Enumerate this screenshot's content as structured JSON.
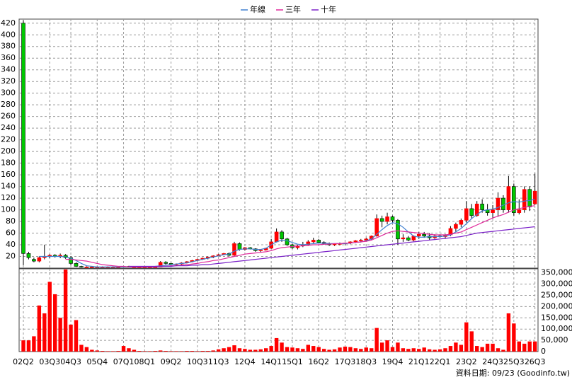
{
  "chart_data": {
    "type": "candlestick",
    "categories": [
      "02Q2",
      null,
      null,
      null,
      null,
      "03Q3",
      null,
      null,
      null,
      "04Q3",
      null,
      null,
      null,
      null,
      "05Q4",
      null,
      null,
      null,
      null,
      "07Q1",
      null,
      null,
      null,
      "08Q1",
      null,
      null,
      null,
      null,
      "09Q2",
      null,
      null,
      null,
      null,
      "10Q3",
      null,
      null,
      null,
      "11Q3",
      null,
      null,
      null,
      null,
      "12Q4",
      null,
      null,
      null,
      null,
      "14Q1",
      null,
      null,
      null,
      "15Q1",
      null,
      null,
      null,
      null,
      "16Q2",
      null,
      null,
      null,
      null,
      "17Q3",
      null,
      null,
      null,
      "18Q3",
      null,
      null,
      null,
      null,
      "19Q4",
      null,
      null,
      null,
      null,
      "21Q1",
      null,
      null,
      null,
      "22Q1",
      null,
      null,
      null,
      null,
      "23Q2",
      null,
      null,
      null,
      null,
      "24Q3",
      null,
      null,
      null,
      "25Q3",
      null,
      null,
      null,
      "26Q3"
    ],
    "open": [
      420,
      25,
      15,
      12,
      18,
      20,
      22,
      20,
      22,
      18,
      8,
      3,
      2,
      2,
      2,
      2,
      2,
      2,
      2,
      2,
      3,
      2,
      2,
      2,
      2,
      2,
      2,
      10,
      8,
      6,
      7,
      9,
      11,
      13,
      15,
      17,
      19,
      21,
      23,
      25,
      22,
      42,
      32,
      35,
      33,
      30,
      31,
      34,
      45,
      62,
      50,
      40,
      35,
      38,
      40,
      45,
      48,
      44,
      42,
      40,
      41,
      42,
      43,
      45,
      47,
      48,
      50,
      55,
      85,
      80,
      88,
      82,
      50,
      52,
      48,
      55,
      58,
      55,
      52,
      55,
      54,
      57,
      68,
      75,
      82,
      102,
      90,
      110,
      100,
      95,
      100,
      120,
      100,
      140,
      95,
      100,
      135,
      110
    ],
    "high": [
      425,
      28,
      18,
      20,
      40,
      24,
      24,
      25,
      24,
      20,
      10,
      4,
      3,
      3,
      3,
      3,
      3,
      3,
      3,
      3,
      4,
      3,
      3,
      3,
      3,
      3,
      12,
      12,
      9,
      8,
      10,
      12,
      14,
      16,
      18,
      20,
      22,
      24,
      26,
      27,
      45,
      44,
      36,
      36,
      34,
      32,
      35,
      50,
      68,
      65,
      52,
      42,
      40,
      45,
      48,
      52,
      50,
      46,
      44,
      42,
      44,
      44,
      46,
      48,
      50,
      52,
      56,
      92,
      90,
      95,
      90,
      84,
      58,
      55,
      56,
      62,
      62,
      60,
      58,
      58,
      58,
      72,
      78,
      85,
      115,
      110,
      115,
      118,
      110,
      108,
      130,
      125,
      158,
      145,
      118,
      140,
      140,
      162
    ],
    "low": [
      5,
      15,
      10,
      10,
      15,
      17,
      18,
      17,
      16,
      5,
      2,
      1,
      1,
      1,
      1,
      1,
      1,
      1,
      1,
      1,
      2,
      1,
      1,
      1,
      1,
      1,
      2,
      6,
      5,
      4,
      6,
      8,
      10,
      12,
      14,
      15,
      17,
      20,
      22,
      20,
      21,
      30,
      30,
      32,
      28,
      27,
      30,
      33,
      44,
      45,
      38,
      33,
      32,
      36,
      38,
      43,
      42,
      40,
      38,
      38,
      39,
      40,
      41,
      43,
      44,
      46,
      48,
      54,
      70,
      75,
      78,
      40,
      45,
      46,
      46,
      50,
      52,
      48,
      50,
      52,
      50,
      55,
      62,
      70,
      78,
      85,
      88,
      95,
      90,
      85,
      88,
      95,
      95,
      90,
      92,
      95,
      98,
      108
    ],
    "close": [
      25,
      18,
      12,
      18,
      20,
      22,
      20,
      22,
      18,
      8,
      3,
      2,
      2,
      2,
      2,
      2,
      2,
      2,
      2,
      3,
      2,
      2,
      2,
      2,
      2,
      2,
      10,
      8,
      6,
      7,
      9,
      11,
      13,
      15,
      17,
      19,
      21,
      23,
      25,
      22,
      42,
      32,
      35,
      33,
      30,
      31,
      34,
      45,
      62,
      50,
      40,
      35,
      38,
      40,
      45,
      48,
      44,
      42,
      40,
      41,
      42,
      43,
      45,
      47,
      48,
      50,
      55,
      85,
      80,
      88,
      82,
      50,
      52,
      48,
      55,
      58,
      55,
      52,
      55,
      54,
      57,
      68,
      75,
      82,
      102,
      90,
      110,
      100,
      95,
      100,
      120,
      100,
      140,
      95,
      100,
      135,
      105,
      132
    ],
    "volume": [
      50000,
      50000,
      68000,
      205000,
      170000,
      310000,
      255000,
      150000,
      365000,
      120000,
      140000,
      30000,
      20000,
      8000,
      5000,
      3000,
      2000,
      2000,
      3000,
      25000,
      15000,
      8000,
      3000,
      2000,
      2000,
      3000,
      5000,
      3000,
      2000,
      2000,
      2000,
      3000,
      3000,
      2000,
      3000,
      3000,
      5000,
      10000,
      15000,
      20000,
      28000,
      15000,
      12000,
      8000,
      8000,
      10000,
      15000,
      25000,
      60000,
      40000,
      20000,
      18000,
      15000,
      12000,
      30000,
      25000,
      20000,
      12000,
      8000,
      10000,
      18000,
      22000,
      20000,
      15000,
      12000,
      18000,
      15000,
      105000,
      40000,
      50000,
      20000,
      40000,
      15000,
      12000,
      15000,
      12000,
      18000,
      10000,
      8000,
      10000,
      15000,
      25000,
      40000,
      30000,
      130000,
      90000,
      25000,
      20000,
      35000,
      35000,
      15000,
      8000,
      170000,
      125000,
      45000,
      35000,
      45000,
      45000
    ],
    "up_color": "#ff0000",
    "down_color": "#00c800",
    "volume_color": "#ff0000",
    "series": [
      {
        "name": "年線",
        "color": "#3f7fd0",
        "values": [
          null,
          null,
          null,
          20,
          20,
          20,
          20,
          20,
          19,
          17,
          13,
          8,
          4,
          3,
          2,
          2,
          2,
          2,
          2,
          2,
          2,
          2,
          2,
          2,
          2,
          3,
          4,
          5,
          6,
          7,
          8,
          9,
          11,
          13,
          15,
          17,
          19,
          21,
          23,
          24,
          29,
          32,
          33,
          33,
          32,
          32,
          34,
          40,
          45,
          48,
          47,
          44,
          41,
          40,
          41,
          42,
          43,
          43,
          42,
          42,
          42,
          42,
          43,
          44,
          45,
          47,
          50,
          58,
          66,
          73,
          78,
          76,
          70,
          62,
          55,
          53,
          53,
          54,
          54,
          54,
          55,
          57,
          62,
          68,
          76,
          85,
          92,
          98,
          100,
          101,
          104,
          108,
          112,
          114,
          113,
          115,
          116,
          118
        ]
      },
      {
        "name": "三年",
        "color": "#e0289a",
        "values": [
          null,
          null,
          null,
          null,
          null,
          null,
          null,
          null,
          15,
          15,
          14,
          13,
          12,
          10,
          8,
          6,
          5,
          4,
          3,
          3,
          2,
          2,
          2,
          2,
          2,
          2,
          3,
          3,
          4,
          4,
          5,
          6,
          7,
          8,
          10,
          11,
          13,
          14,
          16,
          18,
          20,
          22,
          24,
          25,
          26,
          27,
          28,
          30,
          33,
          35,
          36,
          37,
          38,
          38,
          39,
          40,
          40,
          41,
          41,
          42,
          42,
          43,
          43,
          44,
          45,
          46,
          48,
          52,
          56,
          60,
          63,
          64,
          63,
          62,
          61,
          60,
          59,
          58,
          57,
          57,
          57,
          58,
          60,
          62,
          66,
          70,
          74,
          78,
          82,
          86,
          89,
          92,
          96,
          100,
          102,
          104,
          106,
          107
        ]
      },
      {
        "name": "十年",
        "color": "#7a20c8",
        "values": [
          null,
          null,
          null,
          null,
          null,
          null,
          null,
          null,
          null,
          null,
          null,
          null,
          null,
          null,
          null,
          null,
          null,
          null,
          null,
          null,
          3,
          3,
          3,
          3,
          3,
          3,
          3,
          3,
          3,
          4,
          4,
          4,
          5,
          5,
          6,
          6,
          7,
          8,
          9,
          10,
          11,
          12,
          13,
          14,
          15,
          16,
          17,
          18,
          19,
          20,
          21,
          22,
          23,
          24,
          25,
          26,
          27,
          28,
          29,
          30,
          31,
          32,
          33,
          34,
          35,
          36,
          37,
          38,
          39,
          40,
          41,
          42,
          43,
          44,
          45,
          46,
          47,
          48,
          49,
          50,
          51,
          52,
          53,
          54,
          56,
          58,
          60,
          61,
          62,
          63,
          64,
          65,
          66,
          67,
          68,
          69,
          70,
          71
        ]
      }
    ],
    "ylim": [
      0,
      427
    ],
    "yticks": [
      20,
      40,
      60,
      80,
      100,
      120,
      140,
      160,
      180,
      200,
      220,
      240,
      260,
      280,
      300,
      320,
      340,
      360,
      380,
      400,
      420
    ],
    "y2lim": [
      0,
      368000
    ],
    "y2ticks": [
      0,
      {
        "value": 50000,
        "label": "50,000"
      },
      {
        "value": 100000,
        "label": "100,000"
      },
      {
        "value": 150000,
        "label": "150,000"
      },
      {
        "value": 200000,
        "label": "200,000"
      },
      {
        "value": 250000,
        "label": "250,000"
      },
      {
        "value": 300000,
        "label": "300,000"
      },
      {
        "value": 350000,
        "label": "350,000"
      }
    ],
    "grid": true,
    "legend": "top",
    "note": "資料日期: 09/23 (Goodinfo.tw)"
  }
}
